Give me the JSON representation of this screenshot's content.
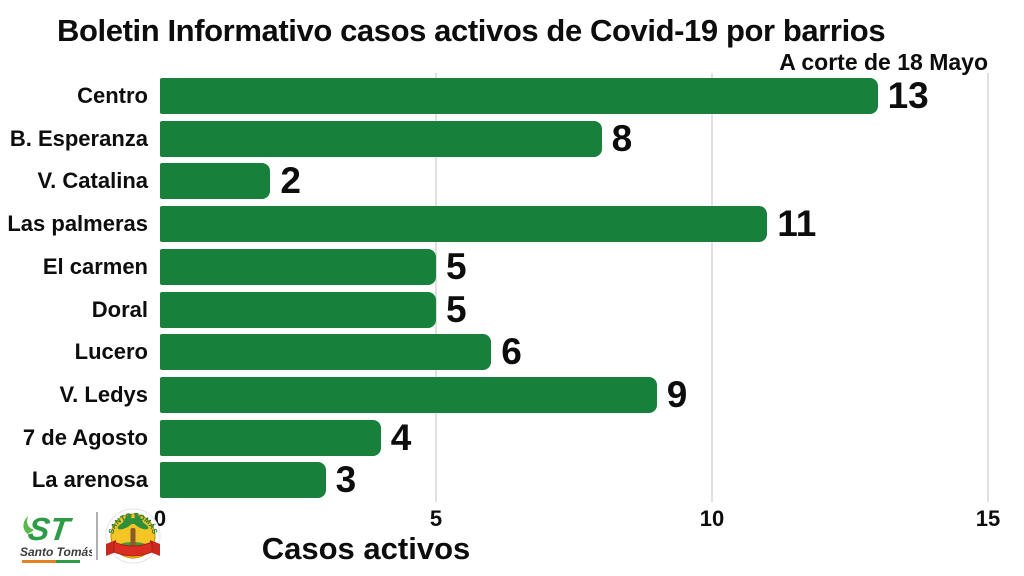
{
  "title": "Boletin Informativo casos activos de Covid-19 por barrios",
  "subtitle": "A corte de 18 Mayo",
  "chart_data": {
    "type": "bar",
    "orientation": "horizontal",
    "title": "Boletin Informativo casos activos de Covid-19 por barrios",
    "subtitle": "A corte de 18 Mayo",
    "categories": [
      "Centro",
      "B. Esperanza",
      "V. Catalina",
      "Las palmeras",
      "El carmen",
      "Doral",
      "Lucero",
      "V. Ledys",
      "7 de Agosto",
      "La arenosa"
    ],
    "values": [
      13,
      8,
      2,
      11,
      5,
      5,
      6,
      9,
      4,
      3
    ],
    "xlabel": "Casos activos",
    "ylabel": "",
    "xlim": [
      0,
      15
    ],
    "xticks": [
      0,
      5,
      10,
      15
    ],
    "grid": true,
    "legend": false,
    "value_labels": true
  },
  "logos": {
    "primary": {
      "monogram": "ST",
      "name": "Santo Tomás"
    },
    "crest": {
      "arc_text": "SANTO TOMÁS"
    }
  },
  "colors": {
    "background": "#ffffff",
    "bar": "#17813C",
    "text": "#0d0d0d",
    "gridline": "#e0e0e0",
    "logo_green": "#2E9B47",
    "logo_light_green": "#57B947",
    "crest_yellow": "#F5C425",
    "crest_red": "#C8281E",
    "crest_green": "#1B7A34",
    "crest_brown": "#8B5A2B"
  }
}
